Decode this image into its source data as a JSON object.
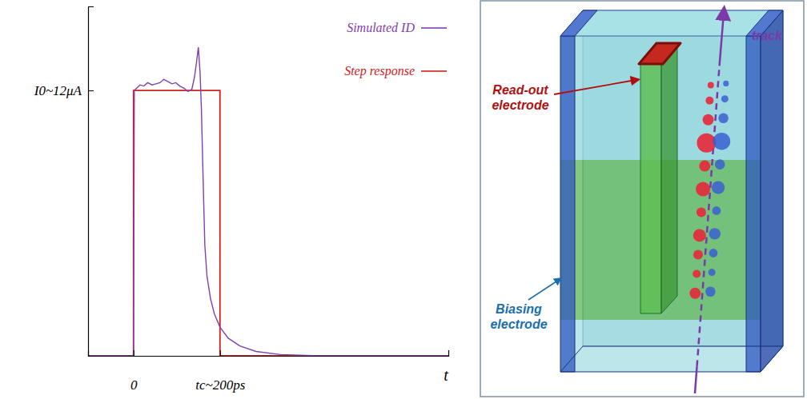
{
  "chart_data": {
    "type": "line",
    "x_label": "t",
    "xlim": [
      -105,
      728
    ],
    "ylim": [
      0,
      15.8
    ],
    "xticks": [
      0,
      {
        "value": 200,
        "label": "tc~200ps"
      }
    ],
    "yticks": [
      {
        "value": 12,
        "label": "I0~12μA"
      }
    ],
    "legend": "upper right",
    "grid": false,
    "series": [
      {
        "name": "Simulated ID",
        "color": "#8040b0",
        "line_style": "solid",
        "x": [
          -105,
          0,
          2,
          15,
          24,
          33,
          43,
          52,
          61,
          70,
          80,
          89,
          98,
          107,
          117,
          126,
          135,
          141,
          146,
          150,
          154,
          157,
          161,
          165,
          170,
          178,
          187,
          200,
          219,
          246,
          283,
          339,
          431,
          728
        ],
        "values": [
          0,
          0,
          12.0,
          12.25,
          12.2,
          12.35,
          12.25,
          12.3,
          12.35,
          12.5,
          12.4,
          12.3,
          12.35,
          12.2,
          12.1,
          11.95,
          12.05,
          12.6,
          13.3,
          13.95,
          12.8,
          11.2,
          8.0,
          5.0,
          3.6,
          2.6,
          1.9,
          1.3,
          0.8,
          0.45,
          0.2,
          0.06,
          0,
          0
        ]
      },
      {
        "name": "Step response",
        "color": "#d02020",
        "line_style": "solid",
        "x": [
          -105,
          0,
          0,
          200,
          200,
          728
        ],
        "values": [
          0,
          0,
          12,
          12,
          0,
          0
        ]
      }
    ]
  },
  "diagram": {
    "labels": {
      "readout": "Read-out electrode",
      "biasing": "Biasing electrode",
      "track": "track"
    }
  }
}
